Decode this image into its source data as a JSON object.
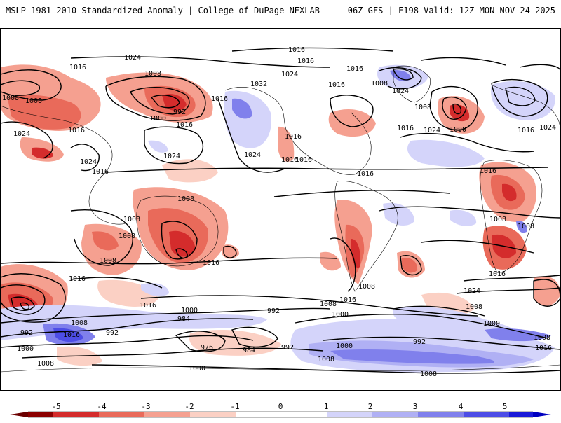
{
  "header": {
    "left_title": "MSLP 1981-2010 Standardized Anomaly | College of DuPage NEXLAB",
    "right_title": "06Z GFS | F198 Valid: 12Z MON NOV 24 2025"
  },
  "colors": {
    "neg5": "#8b0000",
    "neg4": "#d42c2c",
    "neg3": "#e96a5a",
    "neg2": "#f5a090",
    "neg1": "#fbd0c4",
    "zero": "#ffffff",
    "pos1": "#d4d4fa",
    "pos2": "#b0b0f4",
    "pos3": "#8080ec",
    "pos4": "#4d4de6",
    "pos5": "#1a1ad8"
  },
  "colorbar": {
    "ticks": [
      "-5",
      "-4",
      "-3",
      "-2",
      "-1",
      "0",
      "1",
      "2",
      "3",
      "4",
      "5"
    ]
  },
  "contour_labels": [
    "1016",
    "1016",
    "1024",
    "1016",
    "1024",
    "1016",
    "1008",
    "1016",
    "1032",
    "1016",
    "1008",
    "1024",
    "1008",
    "1008",
    "992",
    "1016",
    "1008",
    "1024",
    "1000",
    "1016",
    "1016",
    "1000",
    "1024",
    "1024",
    "1016",
    "1024",
    "1024",
    "1016",
    "1024",
    "1016",
    "1016",
    "1016",
    "1016",
    "1016",
    "1008",
    "1008",
    "1008",
    "1008",
    "1016",
    "1008",
    "1016",
    "1008",
    "1016",
    "1008",
    "1024",
    "1016",
    "1016",
    "1000",
    "1000",
    "1008",
    "992",
    "1008",
    "984",
    "992",
    "1000",
    "1008",
    "992",
    "1000",
    "976",
    "984",
    "992",
    "1000",
    "992",
    "1008",
    "1016",
    "1016",
    "1008",
    "1000",
    "1008",
    "1008"
  ]
}
